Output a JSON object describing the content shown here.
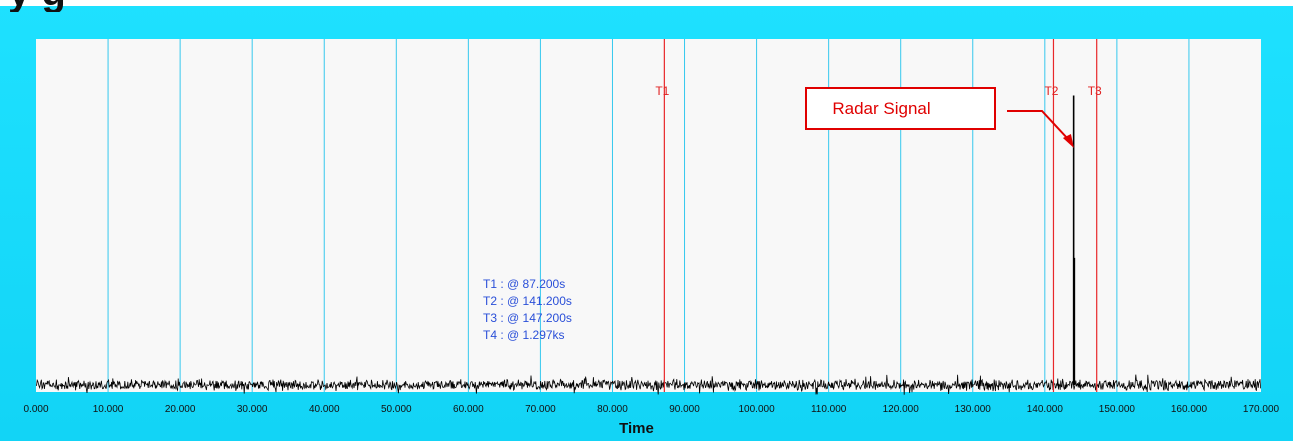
{
  "chart_data": {
    "type": "line",
    "title_fragment": "y g",
    "xlabel": "Time",
    "ylabel": "",
    "xlim": [
      0,
      170
    ],
    "x_ticks": [
      "0.000",
      "10.000",
      "20.000",
      "30.000",
      "40.000",
      "50.000",
      "60.000",
      "70.000",
      "80.000",
      "90.000",
      "100.000",
      "110.000",
      "120.000",
      "130.000",
      "140.000",
      "150.000",
      "160.000",
      "170.000"
    ],
    "grid": true,
    "noise_floor_level": 0.02,
    "series": [
      {
        "points": [
          [
            0,
            0.02
          ],
          [
            143.9,
            0.02
          ],
          [
            144.0,
            0.84
          ],
          [
            144.1,
            0.38
          ],
          [
            144.2,
            0.02
          ],
          [
            170,
            0.02
          ]
        ]
      }
    ],
    "cursors": [
      {
        "name": "T1",
        "x": 87.2
      },
      {
        "name": "T2",
        "x": 141.2
      },
      {
        "name": "T3",
        "x": 147.2
      }
    ],
    "readouts": [
      "T1 : @ 87.200s",
      "T2 : @ 141.200s",
      "T3 : @ 147.200s",
      "T4 : @ 1.297ks"
    ],
    "annotation": {
      "text": "Radar Signal",
      "target_x": 143.9
    },
    "colors": {
      "frame": "#1adcff",
      "plot_background": "#f8f8f8",
      "grid": "#35c8ee",
      "cursor": "#e8282a",
      "signal": "#000000",
      "readout": "#2a4fd8",
      "annotation": "#e00000"
    }
  }
}
